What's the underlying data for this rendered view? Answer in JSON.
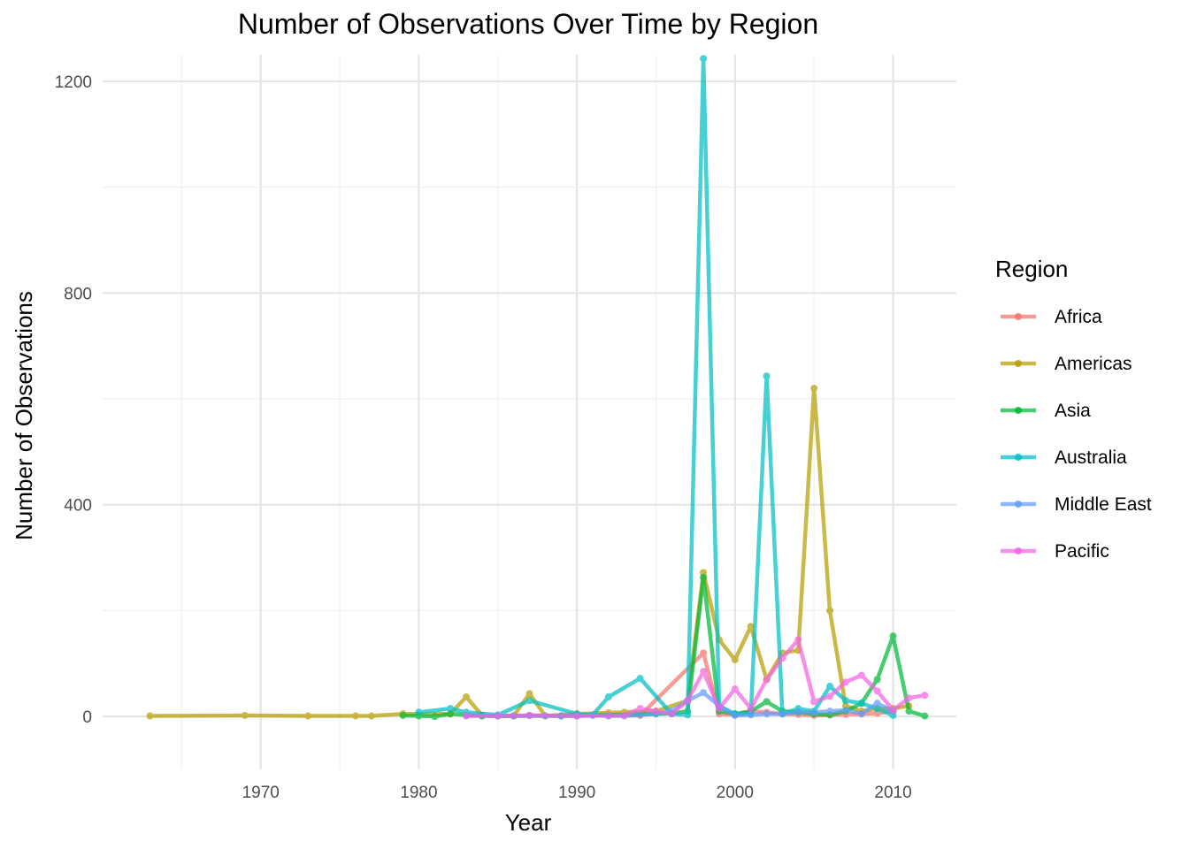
{
  "chart_data": {
    "type": "line",
    "title": "Number of Observations Over Time by Region",
    "xlabel": "Year",
    "ylabel": "Number of Observations",
    "xlim": [
      1960,
      2014
    ],
    "ylim": [
      -100,
      1250
    ],
    "xticks": [
      1970,
      1980,
      1990,
      2000,
      2010
    ],
    "yticks": [
      0,
      400,
      800,
      1200
    ],
    "grid": true,
    "legend": {
      "title": "Region",
      "position": "right"
    },
    "series": [
      {
        "name": "Africa",
        "color": "#F8766D",
        "x": [
          1983,
          1985,
          1986,
          1987,
          1990,
          1992,
          1994,
          1998,
          1999,
          2000,
          2001,
          2002,
          2003,
          2004,
          2005,
          2006,
          2007,
          2008,
          2009,
          2010
        ],
        "y": [
          2,
          1,
          1,
          2,
          1,
          2,
          2,
          120,
          5,
          3,
          10,
          8,
          5,
          4,
          2,
          3,
          4,
          5,
          6,
          10
        ]
      },
      {
        "name": "Americas",
        "color": "#B79F00",
        "x": [
          1963,
          1969,
          1973,
          1976,
          1977,
          1979,
          1982,
          1983,
          1984,
          1986,
          1987,
          1988,
          1990,
          1992,
          1993,
          1995,
          1997,
          1998,
          1999,
          2000,
          2001,
          2002,
          2003,
          2004,
          2005,
          2006,
          2007,
          2008,
          2009,
          2010,
          2011
        ],
        "y": [
          1,
          2,
          1,
          1,
          1,
          5,
          5,
          37,
          2,
          1,
          43,
          1,
          5,
          7,
          8,
          10,
          30,
          272,
          145,
          107,
          170,
          70,
          120,
          125,
          620,
          200,
          20,
          10,
          15,
          15,
          20
        ]
      },
      {
        "name": "Asia",
        "color": "#00BA38",
        "x": [
          1979,
          1980,
          1981,
          1982,
          1984,
          1989,
          1990,
          1995,
          1996,
          1997,
          1998,
          1999,
          2000,
          2001,
          2002,
          2003,
          2004,
          2005,
          2006,
          2007,
          2008,
          2009,
          2010,
          2011,
          2012
        ],
        "y": [
          2,
          1,
          0,
          5,
          1,
          1,
          2,
          5,
          6,
          10,
          263,
          10,
          5,
          10,
          28,
          10,
          8,
          5,
          3,
          10,
          25,
          70,
          152,
          10,
          1
        ]
      },
      {
        "name": "Australia",
        "color": "#00BFC4",
        "x": [
          1980,
          1982,
          1983,
          1985,
          1987,
          1990,
          1991,
          1992,
          1994,
          1996,
          1997,
          1998,
          1999,
          2000,
          2001,
          2002,
          2003,
          2004,
          2005,
          2006,
          2007,
          2008,
          2009,
          2010
        ],
        "y": [
          8,
          15,
          8,
          3,
          30,
          5,
          3,
          37,
          72,
          5,
          3,
          1243,
          20,
          5,
          5,
          643,
          5,
          15,
          10,
          57,
          30,
          25,
          15,
          2
        ]
      },
      {
        "name": "Middle East",
        "color": "#619CFF",
        "x": [
          1983,
          1985,
          1986,
          1987,
          1988,
          1989,
          1990,
          1991,
          1992,
          1993,
          1994,
          1995,
          1996,
          1997,
          1998,
          1999,
          2000,
          2001,
          2002,
          2003,
          2004,
          2005,
          2006,
          2007,
          2008,
          2009,
          2010
        ],
        "y": [
          2,
          1,
          1,
          2,
          1,
          1,
          1,
          2,
          1,
          1,
          3,
          5,
          10,
          30,
          45,
          20,
          2,
          3,
          5,
          5,
          8,
          8,
          10,
          12,
          5,
          25,
          10
        ]
      },
      {
        "name": "Pacific",
        "color": "#F564E3",
        "x": [
          1983,
          1985,
          1987,
          1990,
          1992,
          1993,
          1994,
          1995,
          1996,
          1997,
          1998,
          1999,
          2000,
          2001,
          2002,
          2003,
          2004,
          2005,
          2006,
          2007,
          2008,
          2009,
          2010,
          2011,
          2012
        ],
        "y": [
          1,
          1,
          2,
          1,
          2,
          2,
          15,
          10,
          5,
          30,
          85,
          15,
          52,
          15,
          70,
          110,
          145,
          28,
          38,
          65,
          78,
          48,
          12,
          35,
          40
        ]
      }
    ]
  }
}
